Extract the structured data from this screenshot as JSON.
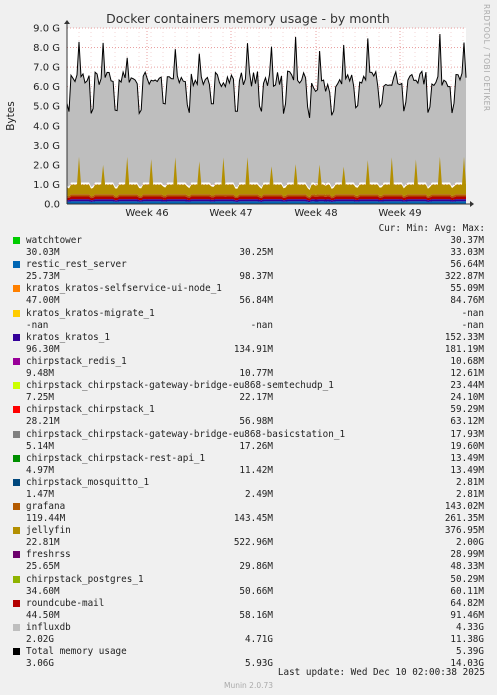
{
  "chart_data": {
    "type": "area",
    "title": "Docker containers memory usage - by month",
    "ylabel": "Bytes",
    "y_ticks": [
      "0.0",
      "1.0 G",
      "2.0 G",
      "3.0 G",
      "4.0 G",
      "5.0 G",
      "6.0 G",
      "7.0 G",
      "8.0 G",
      "9.0 G"
    ],
    "ylim": [
      0,
      9.0
    ],
    "x_ticks": [
      "Week 46",
      "Week 47",
      "Week 48",
      "Week 49"
    ],
    "side_label": "RRDTOOL / TOBI OETIKER",
    "legend_headers": {
      "cur": "Cur:",
      "min": "Min:",
      "avg": "Avg:",
      "max": "Max:"
    },
    "series": [
      {
        "name": "watchtower",
        "color": "#00cc00",
        "cur": "30.03M",
        "min": "30.25M",
        "avg": "33.03M",
        "max": "30.37M"
      },
      {
        "name": "restic_rest_server",
        "color": "#0066b3",
        "cur": "25.73M",
        "min": "98.37M",
        "avg": "322.87M",
        "max": "56.64M"
      },
      {
        "name": "kratos_kratos-selfservice-ui-node_1",
        "color": "#ff8000",
        "cur": "47.00M",
        "min": "56.84M",
        "avg": "84.76M",
        "max": "55.09M"
      },
      {
        "name": "kratos_kratos-migrate_1",
        "color": "#ffcc00",
        "cur": "-nan",
        "min": "-nan",
        "avg": "-nan",
        "max": "-nan"
      },
      {
        "name": "kratos_kratos_1",
        "color": "#330099",
        "cur": "96.30M",
        "min": "134.91M",
        "avg": "181.19M",
        "max": "152.33M"
      },
      {
        "name": "chirpstack_redis_1",
        "color": "#990099",
        "cur": "9.48M",
        "min": "10.77M",
        "avg": "12.61M",
        "max": "10.68M"
      },
      {
        "name": "chirpstack_chirpstack-gateway-bridge-eu868-semtechudp_1",
        "color": "#ccff00",
        "cur": "7.25M",
        "min": "22.17M",
        "avg": "24.10M",
        "max": "23.44M"
      },
      {
        "name": "chirpstack_chirpstack_1",
        "color": "#ff0000",
        "cur": "28.21M",
        "min": "56.98M",
        "avg": "63.12M",
        "max": "59.29M"
      },
      {
        "name": "chirpstack_chirpstack-gateway-bridge-eu868-basicstation_1",
        "color": "#808080",
        "cur": "5.14M",
        "min": "17.26M",
        "avg": "19.60M",
        "max": "17.93M"
      },
      {
        "name": "chirpstack_chirpstack-rest-api_1",
        "color": "#008f00",
        "cur": "4.97M",
        "min": "11.42M",
        "avg": "13.49M",
        "max": "13.49M"
      },
      {
        "name": "chirpstack_mosquitto_1",
        "color": "#00487d",
        "cur": "1.47M",
        "min": "2.49M",
        "avg": "2.81M",
        "max": "2.81M"
      },
      {
        "name": "grafana",
        "color": "#b35a00",
        "cur": "119.44M",
        "min": "143.45M",
        "avg": "261.35M",
        "max": "143.02M"
      },
      {
        "name": "jellyfin",
        "color": "#b38f00",
        "cur": "22.81M",
        "min": "522.96M",
        "avg": "2.00G",
        "max": "376.95M"
      },
      {
        "name": "freshrss",
        "color": "#6b006b",
        "cur": "25.65M",
        "min": "29.86M",
        "avg": "48.33M",
        "max": "28.99M"
      },
      {
        "name": "chirpstack_postgres_1",
        "color": "#8fb300",
        "cur": "34.60M",
        "min": "50.66M",
        "avg": "60.11M",
        "max": "50.29M"
      },
      {
        "name": "roundcube-mail",
        "color": "#b30000",
        "cur": "44.50M",
        "min": "58.16M",
        "avg": "91.46M",
        "max": "64.82M"
      },
      {
        "name": "influxdb",
        "color": "#bebebe",
        "cur": "2.02G",
        "min": "4.71G",
        "avg": "11.38G",
        "max": "4.33G"
      },
      {
        "name": "Total memory usage",
        "color": "#000000",
        "cur": "3.06G",
        "min": "5.93G",
        "avg": "14.03G",
        "max": "5.39G"
      }
    ],
    "last_update": "Last update: Wed Dec 10 02:00:38 2025",
    "footer": "Munin 2.0.73"
  }
}
